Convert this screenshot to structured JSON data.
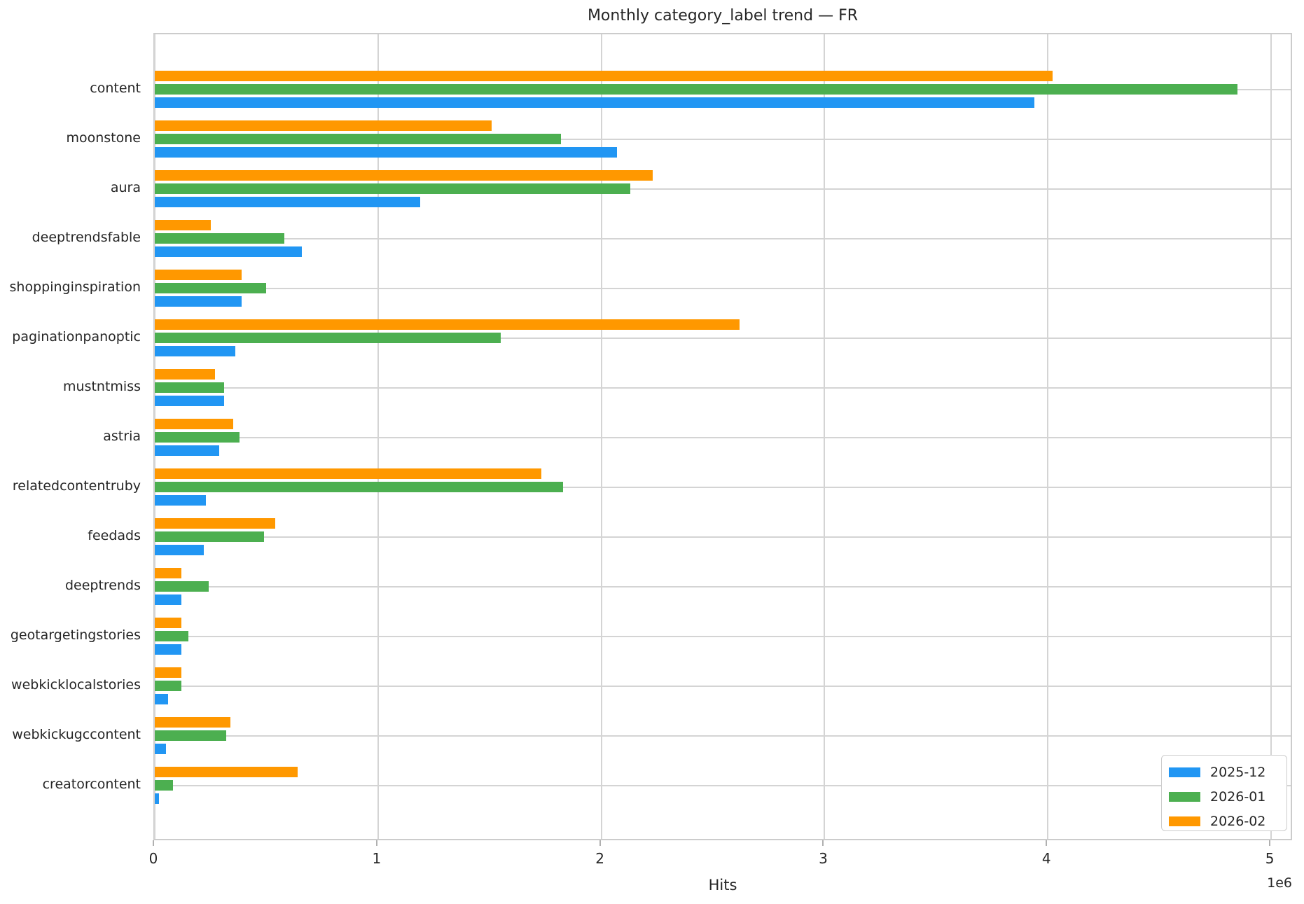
{
  "chart_data": {
    "type": "bar",
    "orientation": "horizontal",
    "title": "Monthly category_label trend — FR",
    "xlabel": "Hits",
    "axis_offset_text": "1e6",
    "grid": true,
    "legend_position": "lower right",
    "xlim": [
      0,
      5100000
    ],
    "xticks": [
      0,
      1000000,
      2000000,
      3000000,
      4000000,
      5000000
    ],
    "xtick_labels": [
      "0",
      "1",
      "2",
      "3",
      "4",
      "5"
    ],
    "categories": [
      "content",
      "moonstone",
      "aura",
      "deeptrendsfable",
      "shoppinginspiration",
      "paginationpanoptic",
      "mustntmiss",
      "astria",
      "relatedcontentruby",
      "feedads",
      "deeptrends",
      "geotargetingstories",
      "webkicklocalstories",
      "webkickugccontent",
      "creatorcontent"
    ],
    "series": [
      {
        "name": "2025-12",
        "color": "#2196f3",
        "values": [
          3940000,
          2070000,
          1190000,
          660000,
          390000,
          360000,
          310000,
          290000,
          230000,
          220000,
          120000,
          120000,
          60000,
          50000,
          20000
        ]
      },
      {
        "name": "2026-01",
        "color": "#4caf50",
        "values": [
          4850000,
          1820000,
          2130000,
          580000,
          500000,
          1550000,
          310000,
          380000,
          1830000,
          490000,
          240000,
          150000,
          120000,
          320000,
          80000
        ]
      },
      {
        "name": "2026-02",
        "color": "#ff9800",
        "values": [
          4020000,
          1510000,
          2230000,
          250000,
          390000,
          2620000,
          270000,
          350000,
          1730000,
          540000,
          120000,
          120000,
          120000,
          340000,
          640000
        ]
      }
    ]
  }
}
